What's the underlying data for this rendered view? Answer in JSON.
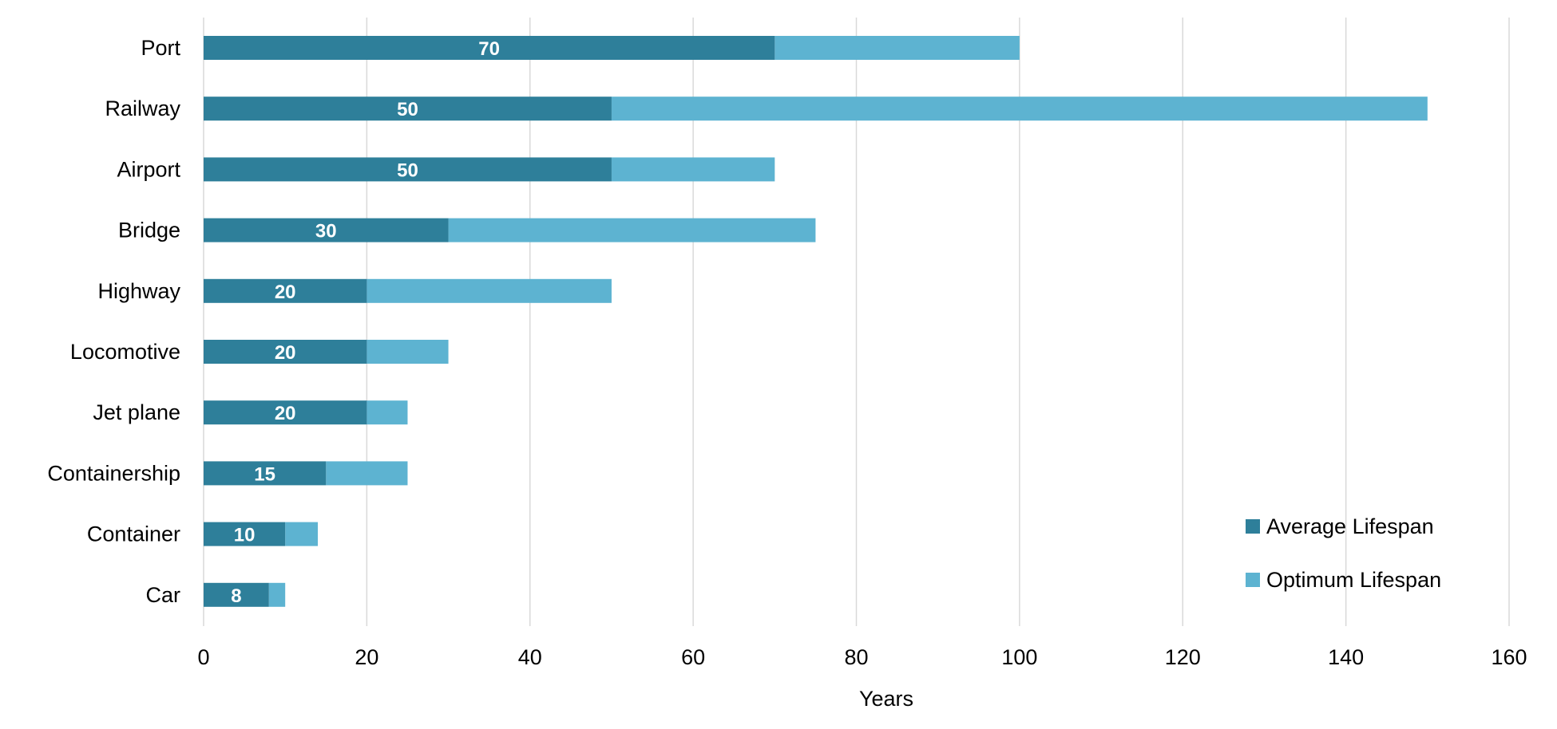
{
  "chart_data": {
    "type": "bar",
    "orientation": "horizontal",
    "stacked": true,
    "title": "",
    "xlabel": "Years",
    "ylabel": "",
    "xlim": [
      0,
      160
    ],
    "x_ticks": [
      0,
      20,
      40,
      60,
      80,
      100,
      120,
      140,
      160
    ],
    "grid": "vertical",
    "legend_position": "bottom-right",
    "categories": [
      "Port",
      "Railway",
      "Airport",
      "Bridge",
      "Highway",
      "Locomotive",
      "Jet plane",
      "Containership",
      "Container",
      "Car"
    ],
    "series": [
      {
        "name": "Average Lifespan",
        "color": "#2e7f9a",
        "values": [
          70,
          50,
          50,
          30,
          20,
          20,
          20,
          15,
          10,
          8
        ],
        "data_labels": [
          "70",
          "50",
          "50",
          "30",
          "20",
          "20",
          "20",
          "15",
          "10",
          "8"
        ]
      },
      {
        "name": "Optimum Lifespan",
        "color": "#5db3d1",
        "end_values": [
          100,
          150,
          70,
          75,
          50,
          30,
          25,
          25,
          14,
          10
        ]
      }
    ]
  }
}
